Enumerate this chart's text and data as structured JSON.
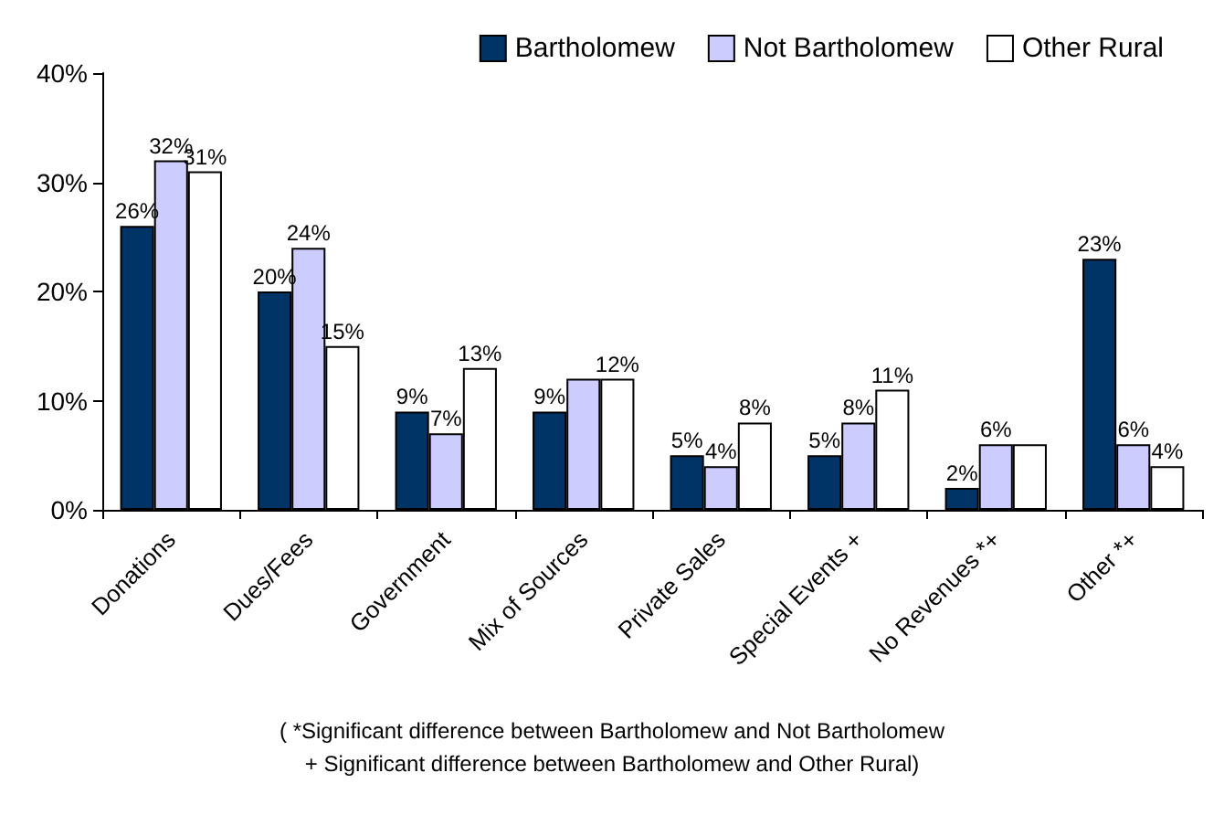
{
  "chart_data": {
    "type": "bar",
    "categories": [
      "Donations",
      "Dues/Fees",
      "Government",
      "Mix of Sources",
      "Private Sales",
      "Special Events +",
      "No Revenues *+",
      "Other *+"
    ],
    "series": [
      {
        "name": "Bartholomew",
        "color": "#003366",
        "values": [
          26,
          20,
          9,
          9,
          5,
          5,
          2,
          23
        ],
        "value_labels": [
          "26%",
          "20%",
          "9%",
          "9%",
          "5%",
          "5%",
          "2%",
          "23%"
        ]
      },
      {
        "name": "Not Bartholomew",
        "color": "#ccccff",
        "values": [
          32,
          24,
          7,
          12,
          4,
          8,
          6,
          6
        ],
        "value_labels": [
          "32%",
          "24%",
          "7%",
          null,
          "4%",
          "8%",
          "6%",
          "6%"
        ]
      },
      {
        "name": "Other Rural",
        "color": "#ffffff",
        "values": [
          31,
          15,
          13,
          12,
          8,
          11,
          6,
          4
        ],
        "value_labels": [
          "31%",
          "15%",
          "13%",
          "12%",
          "8%",
          "11%",
          null,
          "4%"
        ]
      }
    ],
    "ylim": [
      0,
      40
    ],
    "yticks": [
      {
        "value": 0,
        "label": "0%"
      },
      {
        "value": 10,
        "label": "10%"
      },
      {
        "value": 20,
        "label": "20%"
      },
      {
        "value": 30,
        "label": "30%"
      },
      {
        "value": 40,
        "label": "40%"
      }
    ],
    "grid": false,
    "legend": "top right",
    "annotations": [
      "( *Significant difference between Bartholomew and Not Bartholomew",
      "+ Significant difference between Bartholomew and Other Rural)"
    ]
  }
}
